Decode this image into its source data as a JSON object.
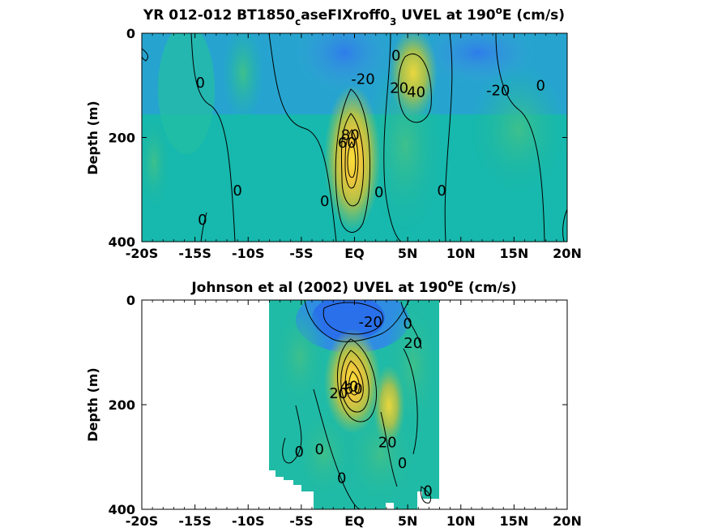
{
  "chart_data": [
    {
      "type": "heatmap",
      "title_main": "YR 012-012 BT1850",
      "title_sub1": "c",
      "title_mid": "aseFIXroff0",
      "title_sub2": "3",
      "title_tail": " UVEL at 190",
      "title_sup": "o",
      "title_end": "E (cm/s)",
      "ylabel": "Depth (m)",
      "x_ticks": [
        "-20S",
        "-15S",
        "-10S",
        "-5S",
        "EQ",
        "5N",
        "10N",
        "15N",
        "20N"
      ],
      "x_tick_values": [
        -20,
        -15,
        -10,
        -5,
        0,
        5,
        10,
        15,
        20
      ],
      "y_ticks": [
        "0",
        "200",
        "400"
      ],
      "y_tick_values": [
        0,
        200,
        400
      ],
      "xlim": [
        -20,
        20
      ],
      "ylim": [
        0,
        400
      ],
      "data_coverage": [
        -20,
        20
      ],
      "contour_labels": [
        {
          "text": "0",
          "x": -14.5,
          "y": 95
        },
        {
          "text": "-20",
          "x": 0.8,
          "y": 88
        },
        {
          "text": "0",
          "x": 3.9,
          "y": 43
        },
        {
          "text": "20",
          "x": 4.2,
          "y": 105
        },
        {
          "text": "40",
          "x": 5.8,
          "y": 113
        },
        {
          "text": "-20",
          "x": 13.5,
          "y": 110
        },
        {
          "text": "0",
          "x": 17.5,
          "y": 100
        },
        {
          "text": "60",
          "x": -0.7,
          "y": 210
        },
        {
          "text": "80",
          "x": -0.4,
          "y": 195
        },
        {
          "text": "0",
          "x": -11,
          "y": 302
        },
        {
          "text": "0",
          "x": -2.8,
          "y": 322
        },
        {
          "text": "0",
          "x": 2.3,
          "y": 305
        },
        {
          "text": "0",
          "x": 8.2,
          "y": 302
        },
        {
          "text": "0",
          "x": -14.3,
          "y": 358
        }
      ]
    },
    {
      "type": "heatmap",
      "title_main": "Johnson et al (2002) UVEL at 190",
      "title_sup": "o",
      "title_end": "E (cm/s)",
      "ylabel": "Depth (m)",
      "x_ticks": [
        "-20S",
        "-15S",
        "-10S",
        "-5S",
        "EQ",
        "5N",
        "10N",
        "15N",
        "20N"
      ],
      "x_tick_values": [
        -20,
        -15,
        -10,
        -5,
        0,
        5,
        10,
        15,
        20
      ],
      "y_ticks": [
        "0",
        "200",
        "400"
      ],
      "y_tick_values": [
        0,
        200,
        400
      ],
      "xlim": [
        -20,
        20
      ],
      "ylim": [
        0,
        400
      ],
      "data_coverage": [
        -8,
        8
      ],
      "contour_labels": [
        {
          "text": "-20",
          "x": 1.5,
          "y": 42
        },
        {
          "text": "0",
          "x": 5,
          "y": 45
        },
        {
          "text": "20",
          "x": 5.5,
          "y": 82
        },
        {
          "text": "20",
          "x": -1.5,
          "y": 178
        },
        {
          "text": "40",
          "x": -0.5,
          "y": 165
        },
        {
          "text": "60",
          "x": -0.1,
          "y": 170
        },
        {
          "text": "0",
          "x": -5.2,
          "y": 290
        },
        {
          "text": "0",
          "x": -3.3,
          "y": 285
        },
        {
          "text": "20",
          "x": 3.1,
          "y": 272
        },
        {
          "text": "0",
          "x": 4.5,
          "y": 312
        },
        {
          "text": "0",
          "x": -1.2,
          "y": 340
        },
        {
          "text": "0",
          "x": 6.9,
          "y": 365
        }
      ]
    }
  ]
}
